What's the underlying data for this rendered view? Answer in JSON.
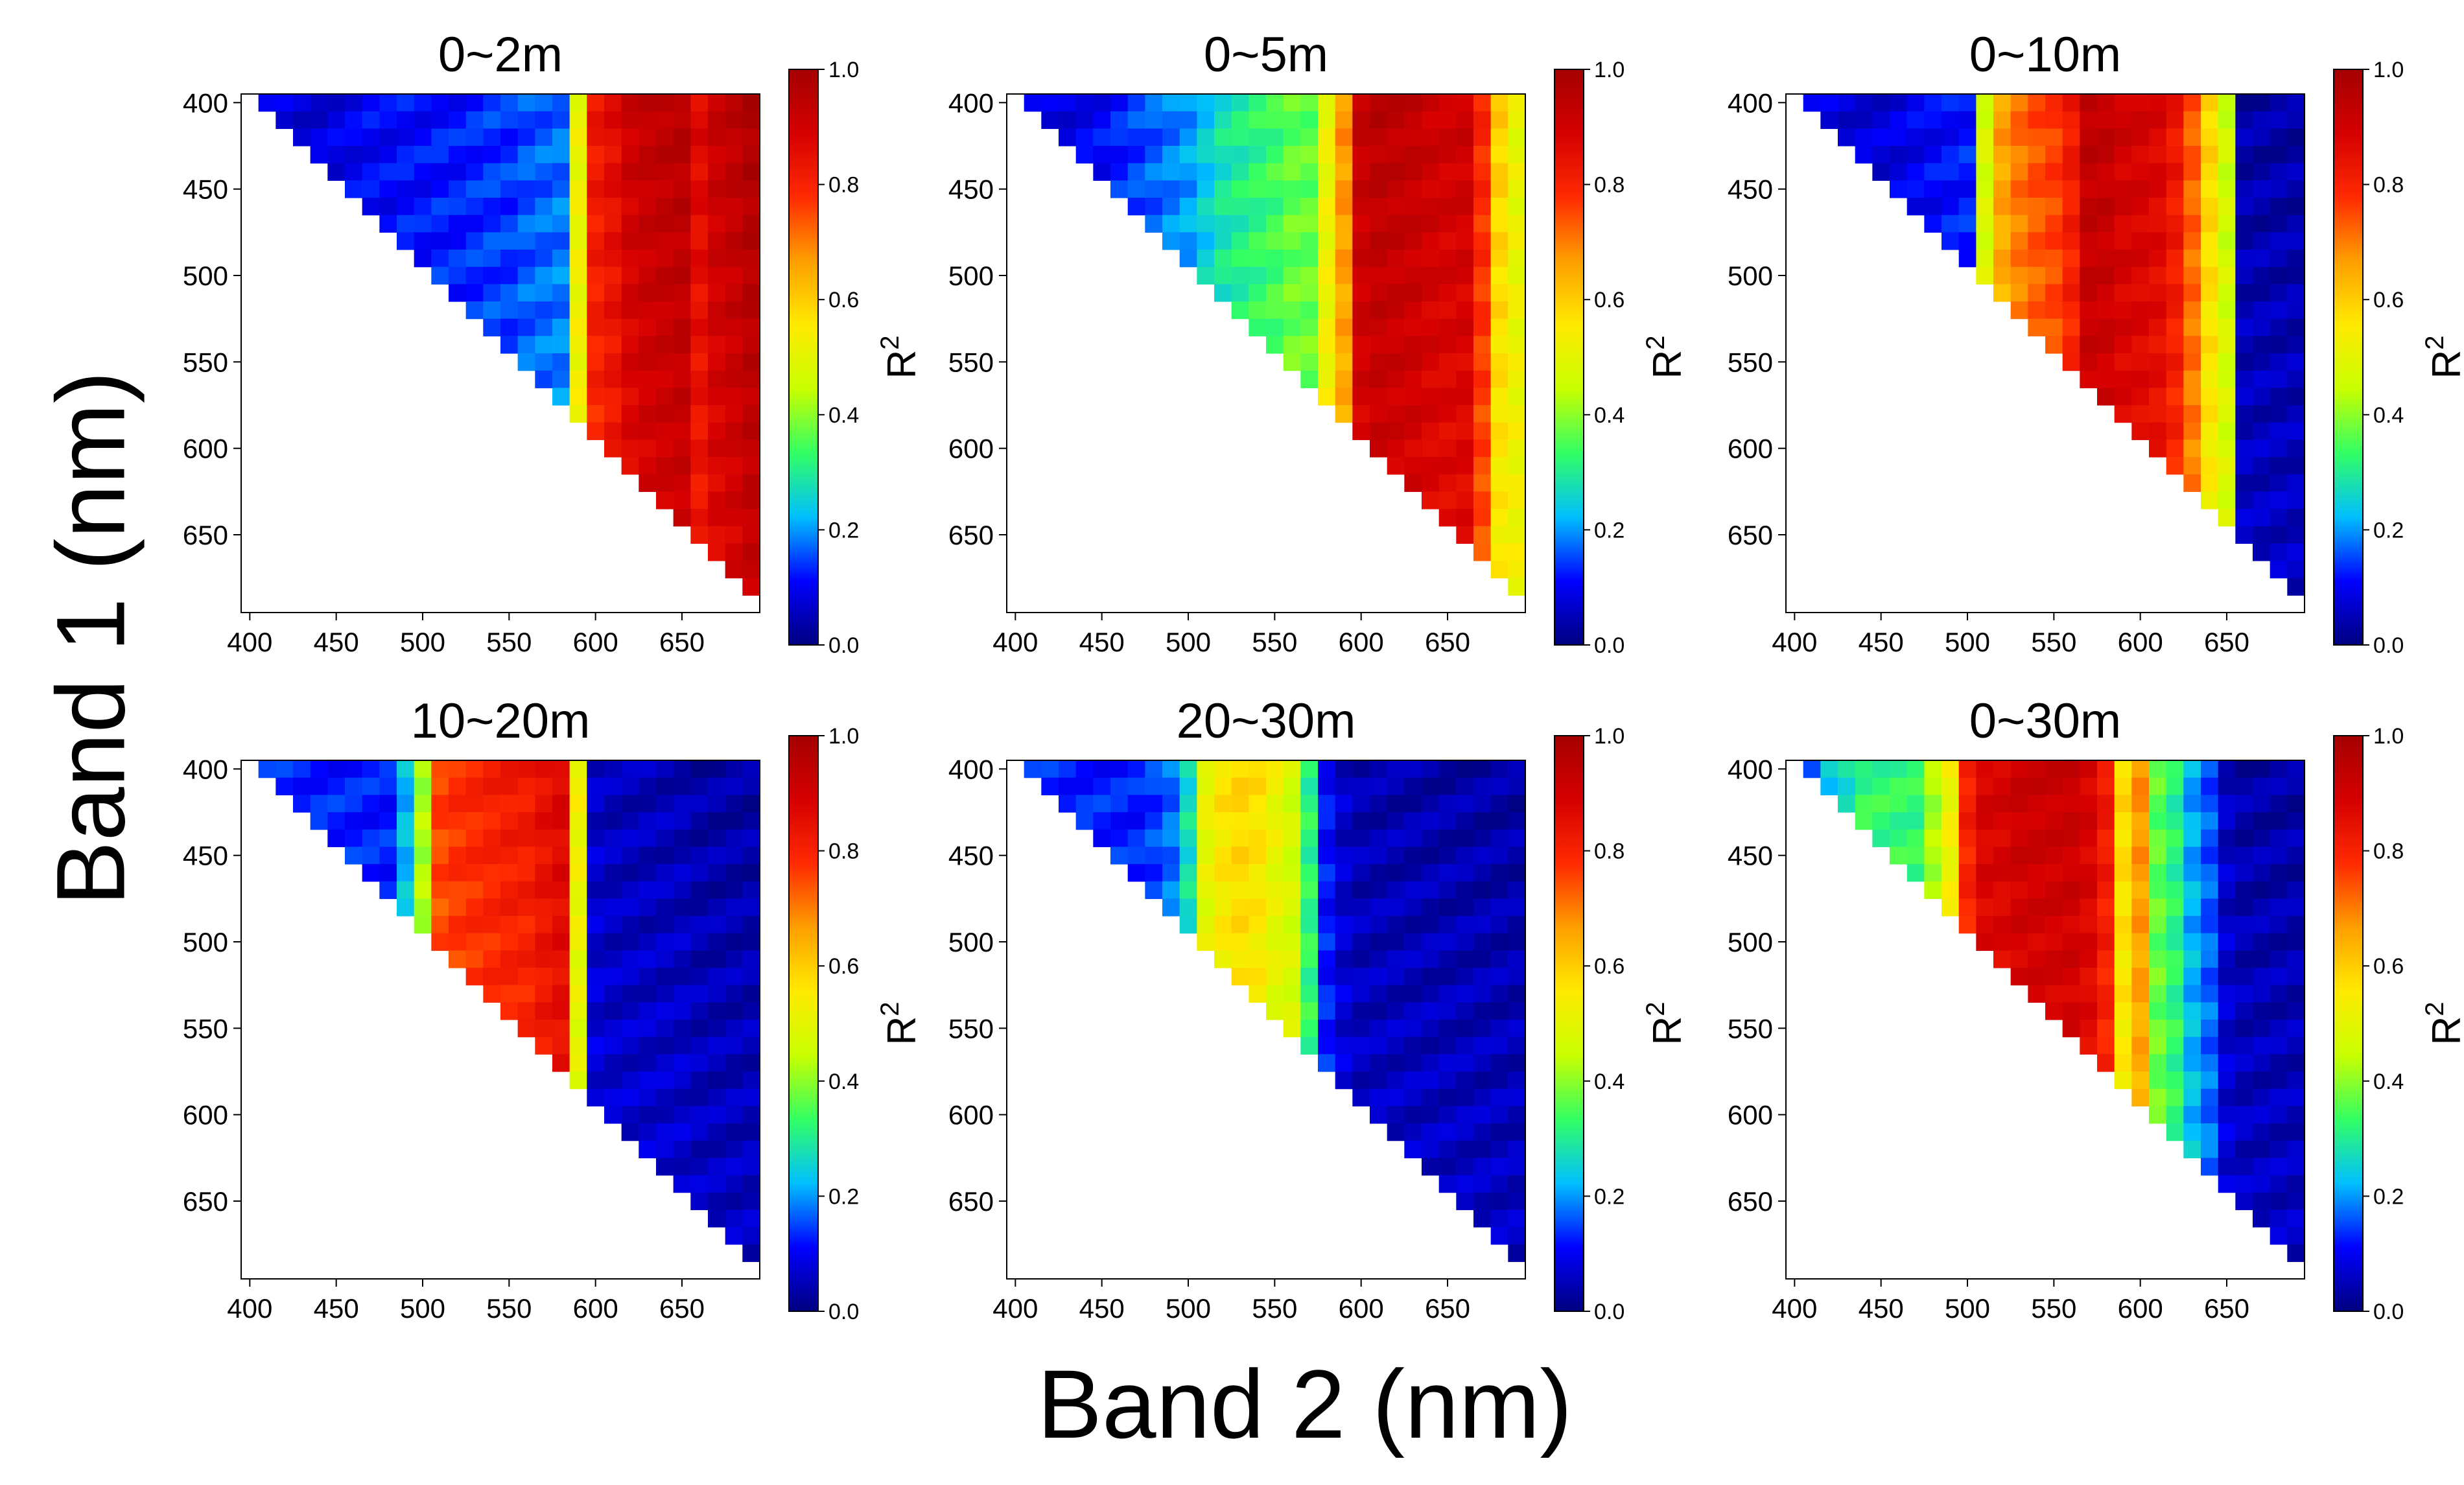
{
  "figure": {
    "xlabel": "Band 2 (nm)",
    "ylabel": "Band 1 (nm)",
    "colorbar_label": "R",
    "colorbar_sup": "2",
    "colorbar_ticks": [
      "0.0",
      "0.2",
      "0.4",
      "0.6",
      "0.8",
      "1.0"
    ]
  },
  "colormap": [
    "#00007f",
    "#0000ff",
    "#00bfff",
    "#32ff64",
    "#c8ff00",
    "#ffea00",
    "#ff9f00",
    "#ff2a00",
    "#d50000",
    "#a40000"
  ],
  "chart_data": [
    {
      "type": "heatmap",
      "title": "0~2m",
      "x_ticks": [
        400,
        450,
        500,
        550,
        600,
        650
      ],
      "y_ticks": [
        400,
        450,
        500,
        550,
        600,
        650
      ],
      "band_start": 400,
      "band_end": 690,
      "band_step": 10,
      "color_range": [
        0,
        1
      ],
      "column_profile": [
        0.05,
        0.05,
        0.05,
        0.05,
        0.05,
        0.06,
        0.07,
        0.08,
        0.08,
        0.09,
        0.09,
        0.1,
        0.1,
        0.11,
        0.12,
        0.12,
        0.14,
        0.15,
        0.16,
        0.5,
        0.85,
        0.88,
        0.93,
        0.95,
        0.96,
        0.97,
        0.88,
        0.93,
        0.95,
        0.98
      ]
    },
    {
      "type": "heatmap",
      "title": "0~5m",
      "x_ticks": [
        400,
        450,
        500,
        550,
        600,
        650
      ],
      "y_ticks": [
        400,
        450,
        500,
        550,
        600,
        650
      ],
      "band_start": 400,
      "band_end": 690,
      "band_step": 10,
      "color_range": [
        0,
        1
      ],
      "column_profile": [
        0.05,
        0.05,
        0.05,
        0.06,
        0.07,
        0.08,
        0.1,
        0.12,
        0.14,
        0.16,
        0.18,
        0.22,
        0.26,
        0.28,
        0.3,
        0.32,
        0.35,
        0.35,
        0.5,
        0.7,
        0.95,
        0.97,
        0.96,
        0.95,
        0.93,
        0.92,
        0.92,
        0.8,
        0.6,
        0.5
      ]
    },
    {
      "type": "heatmap",
      "title": "0~10m",
      "x_ticks": [
        400,
        450,
        500,
        550,
        600,
        650
      ],
      "y_ticks": [
        400,
        450,
        500,
        550,
        600,
        650
      ],
      "band_start": 400,
      "band_end": 690,
      "band_step": 10,
      "color_range": [
        0,
        1
      ],
      "column_profile": [
        0.05,
        0.05,
        0.05,
        0.05,
        0.05,
        0.05,
        0.06,
        0.07,
        0.08,
        0.09,
        0.1,
        0.45,
        0.7,
        0.75,
        0.78,
        0.8,
        0.85,
        0.97,
        0.96,
        0.93,
        0.92,
        0.9,
        0.85,
        0.75,
        0.6,
        0.45,
        0.03,
        0.03,
        0.03,
        0.03
      ]
    },
    {
      "type": "heatmap",
      "title": "10~20m",
      "x_ticks": [
        400,
        450,
        500,
        550,
        600,
        650
      ],
      "y_ticks": [
        400,
        450,
        500,
        550,
        600,
        650
      ],
      "band_start": 400,
      "band_end": 690,
      "band_step": 10,
      "color_range": [
        0,
        1
      ],
      "column_profile": [
        0.1,
        0.1,
        0.1,
        0.1,
        0.1,
        0.1,
        0.1,
        0.1,
        0.1,
        0.2,
        0.4,
        0.8,
        0.82,
        0.83,
        0.84,
        0.85,
        0.85,
        0.88,
        0.9,
        0.55,
        0.05,
        0.04,
        0.04,
        0.04,
        0.04,
        0.04,
        0.03,
        0.03,
        0.03,
        0.03
      ]
    },
    {
      "type": "heatmap",
      "title": "20~30m",
      "x_ticks": [
        400,
        450,
        500,
        550,
        600,
        650
      ],
      "y_ticks": [
        400,
        450,
        500,
        550,
        600,
        650
      ],
      "band_start": 400,
      "band_end": 690,
      "band_step": 10,
      "color_range": [
        0,
        1
      ],
      "column_profile": [
        0.1,
        0.1,
        0.1,
        0.1,
        0.1,
        0.1,
        0.1,
        0.1,
        0.12,
        0.15,
        0.25,
        0.55,
        0.6,
        0.62,
        0.6,
        0.55,
        0.45,
        0.3,
        0.1,
        0.05,
        0.03,
        0.03,
        0.03,
        0.03,
        0.03,
        0.03,
        0.03,
        0.03,
        0.03,
        0.03
      ]
    },
    {
      "type": "heatmap",
      "title": "0~30m",
      "x_ticks": [
        400,
        450,
        500,
        550,
        600,
        650
      ],
      "y_ticks": [
        400,
        450,
        500,
        550,
        600,
        650
      ],
      "band_start": 400,
      "band_end": 690,
      "band_step": 10,
      "color_range": [
        0,
        1
      ],
      "column_profile": [
        0.05,
        0.1,
        0.2,
        0.25,
        0.3,
        0.3,
        0.3,
        0.3,
        0.4,
        0.5,
        0.85,
        0.93,
        0.93,
        0.95,
        0.95,
        0.95,
        0.95,
        0.92,
        0.85,
        0.6,
        0.7,
        0.35,
        0.3,
        0.2,
        0.15,
        0.05,
        0.03,
        0.03,
        0.03,
        0.03
      ]
    }
  ]
}
